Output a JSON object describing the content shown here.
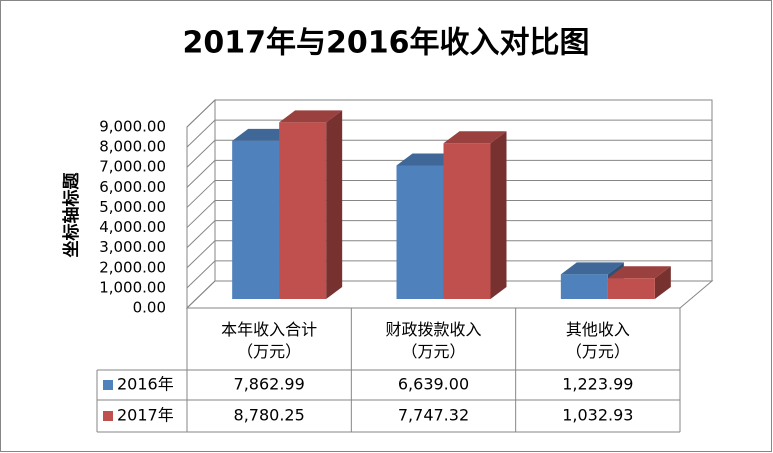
{
  "chart_data": {
    "type": "bar3d",
    "title": "2017年与2016年收入对比图",
    "y_axis_title": "坐标轴标题",
    "categories": [
      "本年收入合计\n（万元）",
      "财政拨款收入\n（万元）",
      "其他收入\n（万元）"
    ],
    "series": [
      {
        "name": "2016年",
        "color": "#4f81bd",
        "values": [
          7862.99,
          6639.0,
          1223.99
        ],
        "value_labels": [
          "7,862.99",
          "6,639.00",
          "1,223.99"
        ]
      },
      {
        "name": "2017年",
        "color": "#c0504d",
        "values": [
          8780.25,
          7747.32,
          1032.93
        ],
        "value_labels": [
          "8,780.25",
          "7,747.32",
          "1,032.93"
        ]
      }
    ],
    "ylim": [
      0,
      9000
    ],
    "yticks": [
      {
        "value": 0,
        "label": "0.00"
      },
      {
        "value": 1000,
        "label": "1,000.00"
      },
      {
        "value": 2000,
        "label": "2,000.00"
      },
      {
        "value": 3000,
        "label": "3,000.00"
      },
      {
        "value": 4000,
        "label": "4,000.00"
      },
      {
        "value": 5000,
        "label": "5,000.00"
      },
      {
        "value": 6000,
        "label": "6,000.00"
      },
      {
        "value": 7000,
        "label": "7,000.00"
      },
      {
        "value": 8000,
        "label": "8,000.00"
      },
      {
        "value": 9000,
        "label": "9,000.00"
      }
    ],
    "grid": true,
    "data_table": true
  }
}
